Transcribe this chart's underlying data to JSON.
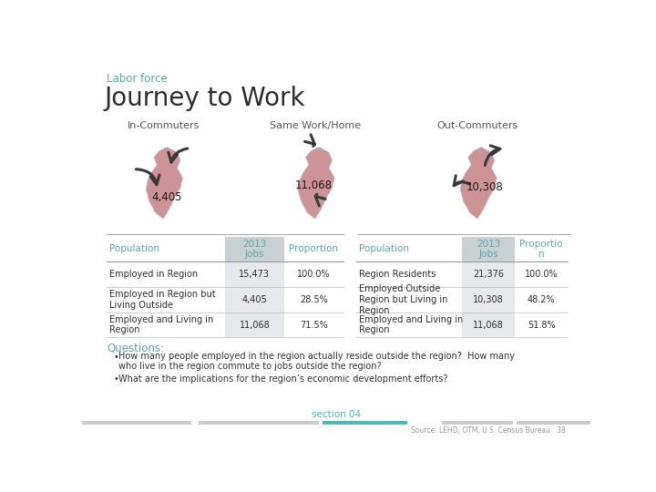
{
  "title_small": "Labor force",
  "title_large": "Journey to Work",
  "title_small_color": "#5BA8A8",
  "title_large_color": "#2D2D2D",
  "section_label_color": "#555555",
  "sections": [
    "In-Commuters",
    "Same Work/Home",
    "Out-Commuters"
  ],
  "section_values": [
    "4,405",
    "11,068",
    "10,308"
  ],
  "left_table": {
    "headers": [
      "Population",
      "2013\nJobs",
      "Proportion"
    ],
    "rows": [
      [
        "Employed in Region",
        "15,473",
        "100.0%"
      ],
      [
        "Employed in Region but\nLiving Outside",
        "4,405",
        "28.5%"
      ],
      [
        "Employed and Living in\nRegion",
        "11,068",
        "71.5%"
      ]
    ]
  },
  "right_table": {
    "headers": [
      "Population",
      "2013\nJobs",
      "Proportio\nn"
    ],
    "rows": [
      [
        "Region Residents",
        "21,376",
        "100.0%"
      ],
      [
        "Employed Outside\nRegion but Living in\nRegion",
        "10,308",
        "48.2%"
      ],
      [
        "Employed and Living in\nRegion",
        "11,068",
        "51.8%"
      ]
    ]
  },
  "questions_label": "Questions:",
  "questions_color": "#5BA8A8",
  "questions": [
    "How many people employed in the region actually reside outside the region?  How many\nwho live in the region commute to jobs outside the region?",
    "What are the implications for the region’s economic development efforts?"
  ],
  "footer_left": "section 04",
  "footer_right": "Source: LEHD, OTM, U.S. Census Bureau",
  "footer_page": "38",
  "bg_color": "#FFFFFF",
  "map_color": "#C9878C",
  "arrow_color": "#3A3A3A",
  "header_bg_color": "#C8D0D4",
  "footer_bar_color": "#4DB8B8",
  "footer_bar_gray": "#CCCCCC"
}
